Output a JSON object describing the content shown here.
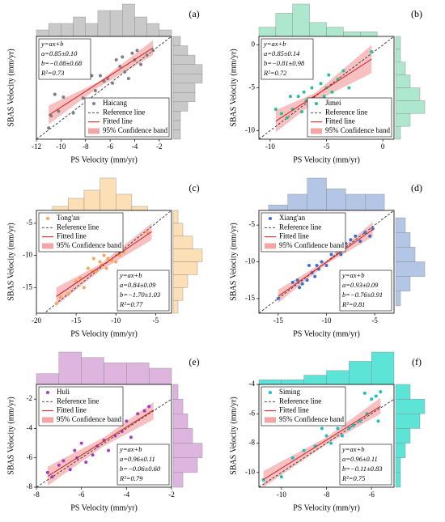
{
  "chart_data": [
    {
      "type": "scatter",
      "panel_label": "(a)",
      "xlabel": "PS Velocity (mm/yr)",
      "ylabel": "SBAS Velocity (mm/yr)",
      "xlim": [
        -12,
        -1
      ],
      "ylim": [
        -12,
        -1
      ],
      "xticks": [
        -12,
        -10,
        -8,
        -6,
        -4,
        -2
      ],
      "legend": "lower right",
      "annotation_position": "upper left",
      "annotation": [
        "y=ax+b",
        "a=0.85±0.10",
        "b=−0.08±0.68",
        "R²=0.73"
      ],
      "series": [
        {
          "name": "Haicang",
          "color": "#7f7f7f",
          "x": [
            -11,
            -10.8,
            -10.5,
            -10.2,
            -9.8,
            -9,
            -8.2,
            -7.9,
            -7.5,
            -7.2,
            -6.8,
            -6.5,
            -6.2,
            -5.8,
            -5.5,
            -5.2,
            -5,
            -4.8,
            -4.5,
            -4.2,
            -4,
            -3.8,
            -3.5,
            -3,
            -2.5
          ],
          "y": [
            -10.8,
            -9.5,
            -7.2,
            -9,
            -7.5,
            -9.2,
            -7.6,
            -7.8,
            -5.2,
            -6.8,
            -5.2,
            -5.8,
            -5.5,
            -6,
            -3.5,
            -4.2,
            -3.2,
            -4.8,
            -5.5,
            -2.8,
            -3.5,
            -2.5,
            -4,
            -3,
            -2.5
          ]
        }
      ],
      "reference_line": {
        "name": "Reference line",
        "color": "#333333"
      },
      "fitted_line": {
        "name": "Fitted line",
        "color": "#d62728",
        "x": [
          -11,
          -2.5
        ],
        "y": [
          -9.43,
          -2.21
        ]
      },
      "confidence_band": {
        "name": "95% Confidence band",
        "color": "#f4a6a6",
        "x": [
          -11,
          -7,
          -2.5
        ],
        "upper": [
          -8.4,
          -5.9,
          -1.4
        ],
        "lower": [
          -10.4,
          -6.5,
          -3.0
        ]
      },
      "top_histogram": {
        "color": "#c0c0c0",
        "bins": [
          -12,
          -11,
          -10,
          -9,
          -8,
          -7,
          -6,
          -5,
          -4,
          -3,
          -2,
          -1
        ],
        "counts": [
          1,
          2,
          2,
          3,
          2,
          4,
          4,
          5,
          3,
          2,
          1
        ]
      },
      "right_histogram": {
        "color": "#c0c0c0",
        "bins": [
          -12,
          -11,
          -10,
          -9,
          -8,
          -7,
          -6,
          -5,
          -4,
          -3,
          -2,
          -1
        ],
        "counts": [
          1,
          1,
          1,
          2,
          3,
          3,
          4,
          4,
          3,
          2,
          1
        ]
      }
    },
    {
      "type": "scatter",
      "panel_label": "(b)",
      "xlabel": "PS Velocity (mm/yr)",
      "ylabel": "SBAS Velocity (mm/yr)",
      "xlim": [
        -11,
        1
      ],
      "ylim": [
        -11,
        1
      ],
      "xticks": [
        -10,
        -5,
        0
      ],
      "yticks": [
        -10,
        -5,
        0
      ],
      "legend": "lower right",
      "annotation_position": "upper left",
      "annotation": [
        "y=ax+b",
        "a=0.85±0.14",
        "b=−0.81±0.98",
        "R²=0.72"
      ],
      "series": [
        {
          "name": "Jimei",
          "color": "#2fbf8a",
          "x": [
            -9.5,
            -9,
            -8.5,
            -8.2,
            -8,
            -7.5,
            -7.2,
            -7,
            -6.8,
            -6.5,
            -6.3,
            -6,
            -5.8,
            -5.5,
            -5.2,
            -5,
            -4.8,
            -4.5,
            -4,
            -3.5,
            -3,
            -1
          ],
          "y": [
            -7.5,
            -8,
            -8.5,
            -6,
            -7.5,
            -6,
            -7.8,
            -5.5,
            -6.5,
            -7,
            -5,
            -6.5,
            -7.5,
            -4.5,
            -6,
            -5,
            -3.5,
            -5.5,
            -4,
            -3,
            -5,
            -0.8
          ]
        }
      ],
      "reference_line": {
        "name": "Reference line",
        "color": "#333333"
      },
      "fitted_line": {
        "name": "Fitted line",
        "color": "#d62728",
        "x": [
          -9.5,
          -1
        ],
        "y": [
          -8.89,
          -1.66
        ]
      },
      "confidence_band": {
        "name": "95% Confidence band",
        "color": "#f4a6a6",
        "x": [
          -9.5,
          -6,
          -1
        ],
        "upper": [
          -7.6,
          -5.6,
          0
        ],
        "lower": [
          -10.2,
          -6.6,
          -3.3
        ]
      },
      "top_histogram": {
        "color": "#9fe3c6",
        "bins": [
          -11,
          -9.5,
          -8,
          -6.5,
          -5,
          -3.5,
          -2,
          -0.5
        ],
        "counts": [
          2,
          5,
          7,
          3,
          2,
          1,
          1
        ]
      },
      "right_histogram": {
        "color": "#9fe3c6",
        "bins": [
          -11,
          -9.5,
          -8,
          -6.5,
          -5,
          -3.5,
          -2,
          -0.5,
          1
        ],
        "counts": [
          1,
          3,
          6,
          5,
          3,
          2,
          1,
          1
        ]
      }
    },
    {
      "type": "scatter",
      "panel_label": "(c)",
      "xlabel": "PS Velocity (mm/yr)",
      "ylabel": "SBAS Velocity (mm/yr)",
      "xlim": [
        -20,
        -3
      ],
      "ylim": [
        -19,
        -3
      ],
      "xticks": [
        -20,
        -15,
        -10,
        -5
      ],
      "yticks": [
        -15,
        -10,
        -5
      ],
      "legend": "upper left",
      "annotation_position": "lower right",
      "annotation": [
        "y=ax+b",
        "a=0.84±0.09",
        "b=−1.70±1.03",
        "R²=0.77"
      ],
      "series": [
        {
          "name": "Tong'an",
          "color": "#f5a65b",
          "x": [
            -17.5,
            -17,
            -16,
            -15,
            -14.5,
            -14,
            -13.5,
            -13,
            -12.8,
            -12.5,
            -12,
            -11.8,
            -11.5,
            -11.2,
            -11,
            -10.5,
            -10,
            -9.5,
            -9,
            -6
          ],
          "y": [
            -17.5,
            -16.5,
            -16,
            -14,
            -13.5,
            -15,
            -12,
            -12.5,
            -10.5,
            -12.5,
            -11,
            -11.5,
            -10,
            -12,
            -10.5,
            -10.8,
            -11,
            -10,
            -9.5,
            -6.5
          ]
        }
      ],
      "reference_line": {
        "name": "Reference line",
        "color": "#333333"
      },
      "fitted_line": {
        "name": "Fitted line",
        "color": "#d62728",
        "x": [
          -17.5,
          -5.5
        ],
        "y": [
          -16.4,
          -6.32
        ]
      },
      "confidence_band": {
        "name": "95% Confidence band",
        "color": "#f4a6a6",
        "x": [
          -17.5,
          -12,
          -5.5
        ],
        "upper": [
          -15,
          -11.4,
          -5
        ],
        "lower": [
          -17.8,
          -12.4,
          -7.6
        ]
      },
      "top_histogram": {
        "color": "#fdd9a8",
        "bins": [
          -18,
          -16,
          -14,
          -12,
          -10,
          -8,
          -6
        ],
        "counts": [
          1,
          3,
          5,
          8,
          4,
          1
        ]
      },
      "right_histogram": {
        "color": "#fdd9a8",
        "bins": [
          -19,
          -17,
          -15,
          -13,
          -11,
          -9,
          -7,
          -5,
          -3
        ],
        "counts": [
          1,
          2,
          3,
          5,
          6,
          4,
          2,
          1
        ]
      }
    },
    {
      "type": "scatter",
      "panel_label": "(d)",
      "xlabel": "PS Velocity (mm/yr)",
      "ylabel": "SBAS Velocity (mm/yr)",
      "xlim": [
        -17,
        -3
      ],
      "ylim": [
        -17,
        -3
      ],
      "xticks": [
        -15,
        -10,
        -5
      ],
      "yticks": [
        -15,
        -10,
        -5
      ],
      "legend": "upper left",
      "annotation_position": "lower right",
      "annotation": [
        "y=ax+b",
        "a=0.93±0.09",
        "b=−0.76±0.91",
        "R²=0.81"
      ],
      "series": [
        {
          "name": "Xiang'an",
          "color": "#3b6fd1",
          "x": [
            -15,
            -13.5,
            -13,
            -12.8,
            -12.5,
            -12,
            -11.8,
            -11.5,
            -11.2,
            -11,
            -10.8,
            -10.5,
            -10,
            -9.5,
            -9,
            -8.5,
            -8,
            -7.5,
            -7,
            -6.5,
            -6,
            -5.5,
            -5.2
          ],
          "y": [
            -15,
            -12.8,
            -12.5,
            -13.5,
            -13,
            -12.5,
            -10.5,
            -11.5,
            -12,
            -10.5,
            -11,
            -10,
            -10.5,
            -9,
            -8.5,
            -9,
            -7.5,
            -7,
            -6.5,
            -7.2,
            -6,
            -6.5,
            -5.5
          ]
        }
      ],
      "reference_line": {
        "name": "Reference line",
        "color": "#333333"
      },
      "fitted_line": {
        "name": "Fitted line",
        "color": "#d62728",
        "x": [
          -15,
          -5.2
        ],
        "y": [
          -14.71,
          -5.6
        ]
      },
      "confidence_band": {
        "name": "95% Confidence band",
        "color": "#f4a6a6",
        "x": [
          -15,
          -10,
          -5.2
        ],
        "upper": [
          -13.8,
          -9.8,
          -4.6
        ],
        "lower": [
          -15.6,
          -10.3,
          -6.6
        ]
      },
      "top_histogram": {
        "color": "#a7bce0",
        "bins": [
          -16,
          -14,
          -12,
          -10,
          -8,
          -6,
          -4
        ],
        "counts": [
          1,
          3,
          6,
          4,
          3,
          3
        ]
      },
      "right_histogram": {
        "color": "#a7bce0",
        "bins": [
          -16,
          -14,
          -12,
          -10,
          -8,
          -6,
          -4
        ],
        "counts": [
          1,
          3,
          6,
          4,
          3,
          2
        ]
      }
    },
    {
      "type": "scatter",
      "panel_label": "(e)",
      "xlabel": "PS Velocity (mm/yr)",
      "ylabel": "SBAS Velocity (mm/yr)",
      "xlim": [
        -8,
        -2
      ],
      "ylim": [
        -8,
        -1
      ],
      "xticks": [
        -8,
        -6,
        -4,
        -2
      ],
      "yticks": [
        -8,
        -6,
        -4,
        -2
      ],
      "legend": "upper left",
      "annotation_position": "lower right",
      "annotation": [
        "y=ax+b",
        "a=0.96±0.11",
        "b=−0.06±0.60",
        "R²=0.79"
      ],
      "series": [
        {
          "name": "Huli",
          "color": "#a040c0",
          "x": [
            -7.5,
            -7.3,
            -7,
            -6.8,
            -6.5,
            -6.3,
            -6.2,
            -6,
            -5.8,
            -5.5,
            -5.3,
            -5,
            -4.8,
            -4.5,
            -4.2,
            -4,
            -3.8,
            -3.5,
            -3.2,
            -3
          ],
          "y": [
            -7,
            -7.3,
            -6.5,
            -6.2,
            -6.8,
            -5.5,
            -6,
            -5,
            -6.3,
            -5.8,
            -5.2,
            -4.8,
            -5.5,
            -4.5,
            -4.2,
            -3.5,
            -4.6,
            -3,
            -2.8,
            -2.5
          ]
        }
      ],
      "reference_line": {
        "name": "Reference line",
        "color": "#333333"
      },
      "fitted_line": {
        "name": "Fitted line",
        "color": "#d62728",
        "x": [
          -7.5,
          -2.8
        ],
        "y": [
          -7.26,
          -2.75
        ]
      },
      "confidence_band": {
        "name": "95% Confidence band",
        "color": "#f4a6a6",
        "x": [
          -7.5,
          -5,
          -2.8
        ],
        "upper": [
          -6.6,
          -4.6,
          -2.2
        ],
        "lower": [
          -7.9,
          -5.2,
          -3.4
        ]
      },
      "top_histogram": {
        "color": "#d8a8d8",
        "bins": [
          -8,
          -7,
          -6,
          -5,
          -4,
          -3,
          -2
        ],
        "counts": [
          2,
          6,
          5,
          4,
          4,
          3
        ]
      },
      "right_histogram": {
        "color": "#d8a8d8",
        "bins": [
          -8,
          -7,
          -6,
          -5,
          -4,
          -3,
          -2,
          -1
        ],
        "counts": [
          2,
          5,
          6,
          4,
          3,
          2,
          1
        ]
      }
    },
    {
      "type": "scatter",
      "panel_label": "(f)",
      "xlabel": "PS Velocity (mm/yr)",
      "ylabel": "SBAS Velocity (mm/yr)",
      "xlim": [
        -11,
        -5
      ],
      "ylim": [
        -11,
        -4
      ],
      "xticks": [
        -10,
        -8,
        -6
      ],
      "yticks": [
        -10,
        -8,
        -6,
        -4
      ],
      "legend": "upper left",
      "annotation_position": "lower right",
      "annotation": [
        "y=ax+b",
        "a=0.96±0.11",
        "b=−0.11±0.83",
        "R²=0.75"
      ],
      "series": [
        {
          "name": "Siming",
          "color": "#1fbfbf",
          "x": [
            -10.8,
            -10,
            -9.5,
            -9,
            -8.5,
            -8.2,
            -8,
            -7.8,
            -7.5,
            -7.3,
            -7,
            -6.8,
            -6.5,
            -6.3,
            -6.2,
            -6,
            -5.8,
            -5.7,
            -5.6
          ],
          "y": [
            -10.5,
            -10.3,
            -9,
            -8.5,
            -8.2,
            -7,
            -7.5,
            -8,
            -7,
            -7.5,
            -7,
            -6.8,
            -6.5,
            -4.6,
            -6,
            -5,
            -4.8,
            -6.5,
            -4.5
          ]
        }
      ],
      "reference_line": {
        "name": "Reference line",
        "color": "#333333"
      },
      "fitted_line": {
        "name": "Fitted line",
        "color": "#d62728",
        "x": [
          -10.8,
          -5.6
        ],
        "y": [
          -10.48,
          -5.49
        ]
      },
      "confidence_band": {
        "name": "95% Confidence band",
        "color": "#f4a6a6",
        "x": [
          -10.8,
          -8,
          -5.6
        ],
        "upper": [
          -9.9,
          -7.6,
          -4.9
        ],
        "lower": [
          -11,
          -8.1,
          -6.0
        ]
      },
      "top_histogram": {
        "color": "#40e0d0",
        "bins": [
          -11,
          -10,
          -9,
          -8,
          -7,
          -6,
          -5
        ],
        "counts": [
          1,
          1,
          2,
          3,
          5,
          7
        ]
      },
      "right_histogram": {
        "color": "#40e0d0",
        "bins": [
          -11,
          -10,
          -9,
          -8,
          -7,
          -6,
          -5,
          -4
        ],
        "counts": [
          1,
          1,
          2,
          3,
          5,
          6,
          3
        ]
      }
    }
  ]
}
